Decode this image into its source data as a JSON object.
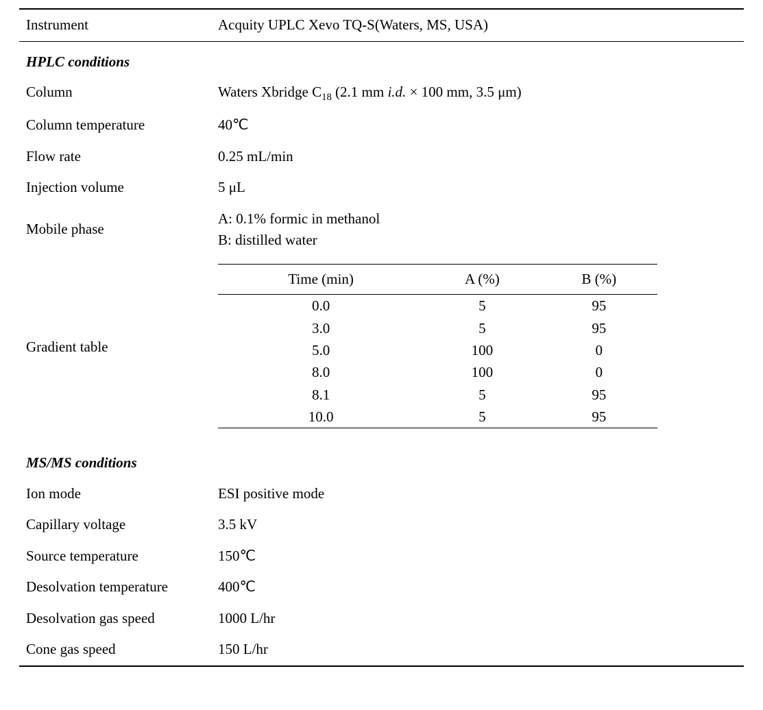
{
  "header": {
    "instrument_label": "Instrument",
    "instrument_value": "Acquity UPLC Xevo TQ-S(Waters, MS, USA)"
  },
  "hplc": {
    "heading": "HPLC conditions",
    "rows": {
      "column_label": "Column",
      "column_value_prefix": "Waters Xbridge C",
      "column_value_sub": "18",
      "column_value_mid": " (2.1 mm ",
      "column_value_id": "i.d.",
      "column_value_suffix": " × 100 mm, 3.5 μm)",
      "coltemp_label": "Column temperature",
      "coltemp_value": "40℃",
      "flow_label": "Flow rate",
      "flow_value": "0.25 mL/min",
      "inj_label": "Injection volume",
      "inj_value": "5 μL",
      "mobile_label": "Mobile phase",
      "mobile_a": "A: 0.1% formic in methanol",
      "mobile_b": "B: distilled water",
      "gradient_label": "Gradient table"
    },
    "gradient": {
      "columns": [
        "Time (min)",
        "A (%)",
        "B (%)"
      ],
      "rows": [
        [
          "0.0",
          "5",
          "95"
        ],
        [
          "3.0",
          "5",
          "95"
        ],
        [
          "5.0",
          "100",
          "0"
        ],
        [
          "8.0",
          "100",
          "0"
        ],
        [
          "8.1",
          "5",
          "95"
        ],
        [
          "10.0",
          "5",
          "95"
        ]
      ]
    }
  },
  "msms": {
    "heading": "MS/MS conditions",
    "rows": {
      "ion_label": "Ion mode",
      "ion_value": "ESI positive mode",
      "cap_label": "Capillary voltage",
      "cap_value": "3.5 kV",
      "src_label": "Source temperature",
      "src_value": "150℃",
      "desT_label": "Desolvation temperature",
      "desT_value": "400℃",
      "desG_label": "Desolvation gas speed",
      "desG_value": "1000 L/hr",
      "cone_label": "Cone gas speed",
      "cone_value": "150 L/hr"
    }
  }
}
